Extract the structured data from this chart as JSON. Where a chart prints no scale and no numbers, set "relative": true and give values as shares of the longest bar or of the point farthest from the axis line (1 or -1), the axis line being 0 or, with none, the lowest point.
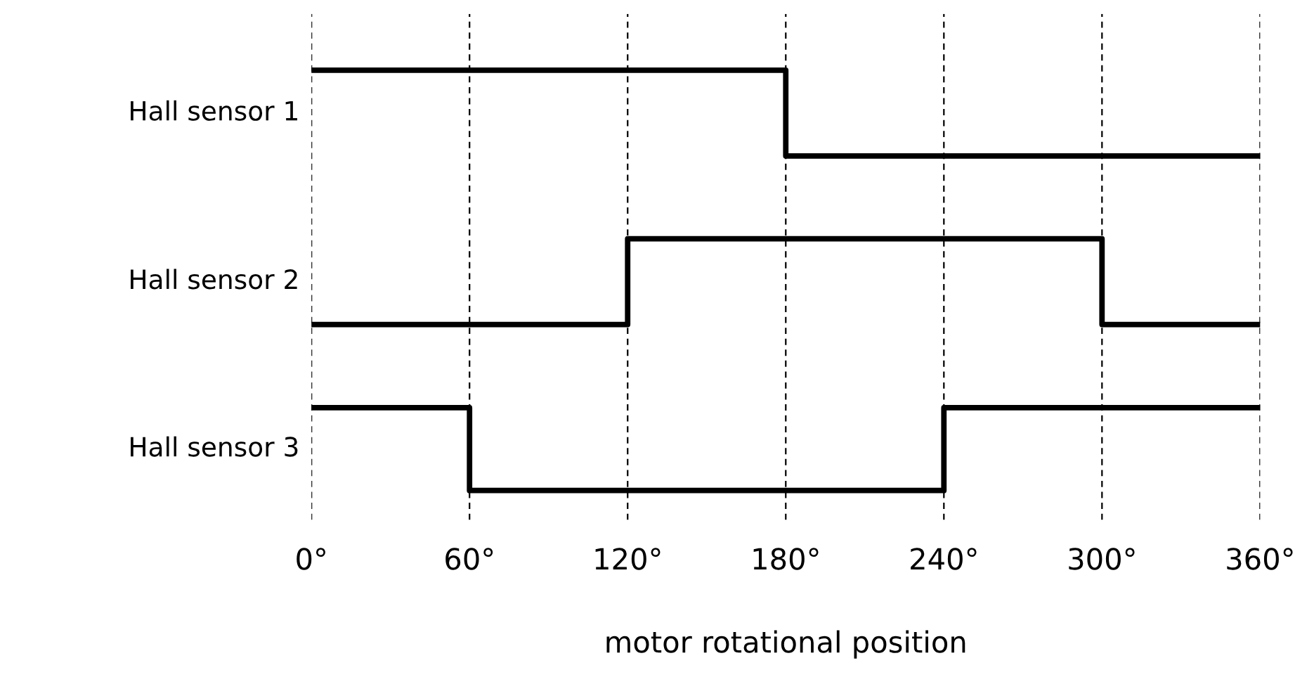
{
  "chart_data": {
    "type": "step",
    "relative": true,
    "xlabel": "motor rotational position",
    "xlim": [
      0,
      360
    ],
    "xticks": [
      {
        "value": 0,
        "label": "0°"
      },
      {
        "value": 60,
        "label": "60°"
      },
      {
        "value": 120,
        "label": "120°"
      },
      {
        "value": 180,
        "label": "180°"
      },
      {
        "value": 240,
        "label": "240°"
      },
      {
        "value": 300,
        "label": "300°"
      },
      {
        "value": 360,
        "label": "360°"
      }
    ],
    "grid": "x",
    "legend": false,
    "tick_labels": "x",
    "line_style": "solid",
    "marker": "none",
    "series": [
      {
        "name": "Hall sensor 1",
        "color": "#000000",
        "x": [
          0,
          180,
          360
        ],
        "values": [
          1,
          0.796,
          0.796
        ]
      },
      {
        "name": "Hall sensor 2",
        "color": "#000000",
        "x": [
          0,
          120,
          300,
          360
        ],
        "values": [
          0.395,
          0.599,
          0.395,
          0.395
        ]
      },
      {
        "name": "Hall sensor 3",
        "color": "#000000",
        "x": [
          0,
          60,
          240,
          360
        ],
        "values": [
          0.197,
          0,
          0.197,
          0.197
        ]
      }
    ]
  }
}
